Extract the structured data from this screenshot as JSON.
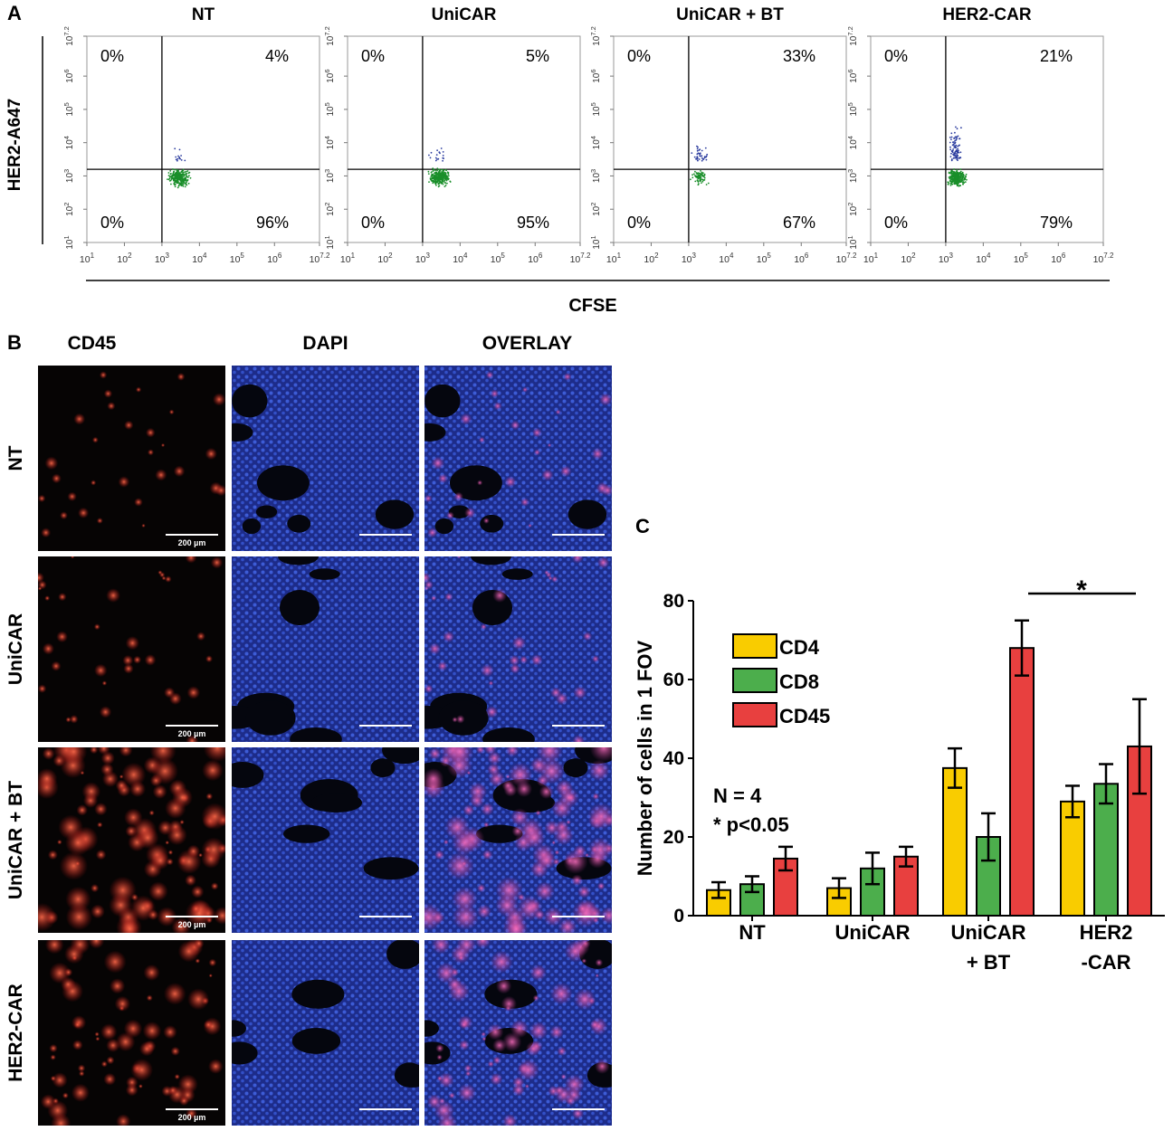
{
  "panel_letters": {
    "a": "A",
    "b": "B",
    "c": "C"
  },
  "flow": {
    "y_axis_label": "HER2-A647",
    "x_axis_label": "CFSE",
    "x_ticks": [
      {
        "base": "10",
        "exp": "1"
      },
      {
        "base": "10",
        "exp": "2"
      },
      {
        "base": "10",
        "exp": "3"
      },
      {
        "base": "10",
        "exp": "4"
      },
      {
        "base": "10",
        "exp": "5"
      },
      {
        "base": "10",
        "exp": "6"
      },
      {
        "base": "10",
        "exp": "7.2"
      }
    ],
    "y_ticks": [
      {
        "base": "10",
        "exp": "1"
      },
      {
        "base": "10",
        "exp": "2"
      },
      {
        "base": "10",
        "exp": "3"
      },
      {
        "base": "10",
        "exp": "4"
      },
      {
        "base": "10",
        "exp": "5"
      },
      {
        "base": "10",
        "exp": "6"
      },
      {
        "base": "10",
        "exp": "7.2"
      }
    ],
    "gate_log": 3.2,
    "plots": [
      {
        "title": "NT",
        "q": {
          "ul": "0%",
          "ur": "4%",
          "ll": "0%",
          "lr": "96%"
        }
      },
      {
        "title": "UniCAR",
        "q": {
          "ul": "0%",
          "ur": "5%",
          "ll": "0%",
          "lr": "95%"
        }
      },
      {
        "title": "UniCAR + BT",
        "q": {
          "ul": "0%",
          "ur": "33%",
          "ll": "0%",
          "lr": "67%"
        }
      },
      {
        "title": "HER2-CAR",
        "q": {
          "ul": "0%",
          "ur": "21%",
          "ll": "0%",
          "lr": "79%"
        }
      }
    ],
    "colors": {
      "low": "#1a8f2a",
      "high": "#2a3b9e"
    }
  },
  "micro": {
    "columns": [
      "CD45",
      "DAPI",
      "OVERLAY"
    ],
    "rows": [
      "NT",
      "UniCAR",
      "UniCAR + BT",
      "HER2-CAR"
    ],
    "scale_label": "200 µm",
    "red_density": [
      0.15,
      0.2,
      1.0,
      0.65
    ]
  },
  "chart_data": {
    "type": "bar",
    "categories": [
      [
        "NT"
      ],
      [
        "UniCAR"
      ],
      [
        "UniCAR",
        "+ BT"
      ],
      [
        "HER2",
        "-CAR"
      ]
    ],
    "series": [
      {
        "name": "CD4",
        "color": "#f9cc00",
        "values": [
          6.5,
          7,
          37.5,
          29
        ],
        "errors": [
          2,
          2.5,
          5,
          4
        ]
      },
      {
        "name": "CD8",
        "color": "#4cae4c",
        "values": [
          8,
          12,
          20,
          33.5
        ],
        "errors": [
          2,
          4,
          6,
          5
        ]
      },
      {
        "name": "CD45",
        "color": "#e8403f",
        "values": [
          14.5,
          15,
          68,
          43
        ],
        "errors": [
          3,
          2.5,
          7,
          12
        ]
      }
    ],
    "ylabel": "Number of cells in 1 FOV",
    "ylim": [
      0,
      80
    ],
    "yticks": [
      0,
      20,
      40,
      60,
      80
    ],
    "annotation": {
      "line1": "N = 4",
      "line2": "* p<0.05"
    },
    "significance": "*"
  }
}
